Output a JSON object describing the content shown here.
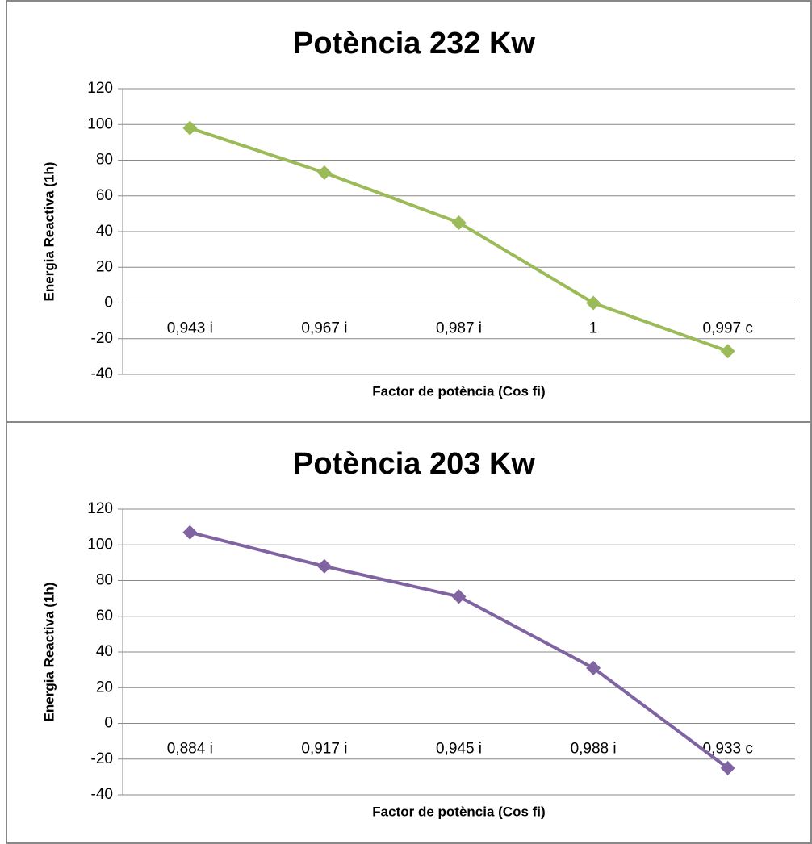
{
  "chart_data": [
    {
      "type": "line",
      "title": "Potència 232 Kw",
      "y_label": "Energia Reactiva (1h)",
      "x_label": "Factor de potència (Cos fi)",
      "categories": [
        "0,943 i",
        "0,967 i",
        "0,987 i",
        "1",
        "0,997 c"
      ],
      "values": [
        98,
        73,
        45,
        0,
        -27
      ],
      "color": "#9bbb59",
      "ylim": [
        -40,
        120
      ],
      "yticks": [
        -40,
        -20,
        0,
        20,
        40,
        60,
        80,
        100,
        120
      ],
      "grid": true
    },
    {
      "type": "line",
      "title": "Potència 203 Kw",
      "y_label": "Energia Reactiva (1h)",
      "x_label": "Factor de potència (Cos fi)",
      "categories": [
        "0,884 i",
        "0,917 i",
        "0,945 i",
        "0,988 i",
        "0,933 c"
      ],
      "values": [
        107,
        88,
        71,
        31,
        -25
      ],
      "color": "#8064a2",
      "ylim": [
        -40,
        120
      ],
      "yticks": [
        -40,
        -20,
        0,
        20,
        40,
        60,
        80,
        100,
        120
      ],
      "grid": true
    }
  ]
}
